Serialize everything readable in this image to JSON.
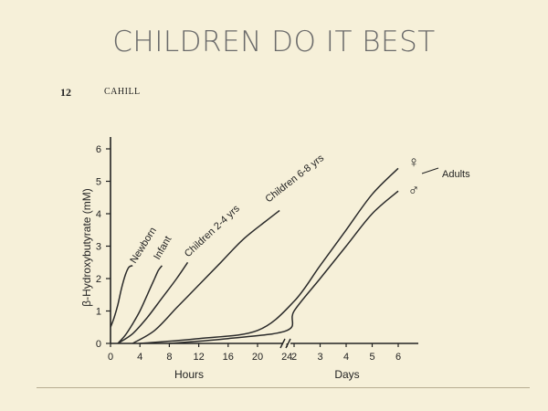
{
  "slide": {
    "title": "CHILDREN DO IT BEST",
    "page_number": "12",
    "running_head": "CAHILL"
  },
  "chart_data": {
    "type": "line",
    "title": "",
    "ylabel": "β-Hydroxybutyrate (mM)",
    "ylim": [
      0,
      6.5
    ],
    "yticks": [
      0,
      1,
      2,
      3,
      4,
      5,
      6
    ],
    "x_segments": [
      {
        "label": "Hours",
        "ticks": [
          "0",
          "4",
          "8",
          "12",
          "16",
          "20",
          "24"
        ],
        "range": [
          0,
          24
        ]
      },
      {
        "label": "Days",
        "ticks": [
          "2",
          "3",
          "4",
          "5",
          "6"
        ],
        "range": [
          1,
          6
        ]
      }
    ],
    "axis_break": "//",
    "series": [
      {
        "name": "Newborn",
        "segment": 0,
        "x": [
          0,
          0.5,
          1,
          1.5,
          2,
          2.5,
          3
        ],
        "y": [
          0.5,
          0.8,
          1.2,
          1.7,
          2.1,
          2.35,
          2.4
        ]
      },
      {
        "name": "Infant",
        "segment": 0,
        "x": [
          1,
          2,
          3,
          4,
          5,
          6,
          6.5,
          7
        ],
        "y": [
          0,
          0.25,
          0.6,
          1.0,
          1.5,
          2.0,
          2.25,
          2.4
        ]
      },
      {
        "name": "Children 2-4 yrs",
        "segment": 0,
        "x": [
          1,
          3,
          5,
          7,
          9,
          10.5
        ],
        "y": [
          0,
          0.3,
          0.8,
          1.4,
          2.0,
          2.5
        ]
      },
      {
        "name": "Children 6-8 yrs",
        "segment": 0,
        "x": [
          3,
          6,
          9,
          12,
          15,
          18,
          21,
          23
        ],
        "y": [
          0,
          0.4,
          1.1,
          1.8,
          2.5,
          3.2,
          3.75,
          4.1
        ]
      },
      {
        "name": "♀",
        "segment": "continuous",
        "points": [
          [
            "h",
            4,
            0
          ],
          [
            "h",
            12,
            0.15
          ],
          [
            "h",
            20,
            0.4
          ],
          [
            "d",
            2,
            1.3
          ],
          [
            "d",
            3,
            2.4
          ],
          [
            "d",
            4,
            3.5
          ],
          [
            "d",
            5,
            4.6
          ],
          [
            "d",
            6,
            5.4
          ]
        ]
      },
      {
        "name": "♂",
        "segment": "continuous",
        "points": [
          [
            "h",
            8,
            0
          ],
          [
            "h",
            16,
            0.15
          ],
          [
            "h",
            24,
            0.4
          ],
          [
            "d",
            2,
            1.0
          ],
          [
            "d",
            3,
            2.0
          ],
          [
            "d",
            4,
            3.0
          ],
          [
            "d",
            5,
            4.0
          ],
          [
            "d",
            6,
            4.7
          ]
        ]
      }
    ],
    "annotations": {
      "adults": "Adults",
      "female_symbol": "♀",
      "male_symbol": "♂"
    },
    "grid": false,
    "legend": "none"
  }
}
